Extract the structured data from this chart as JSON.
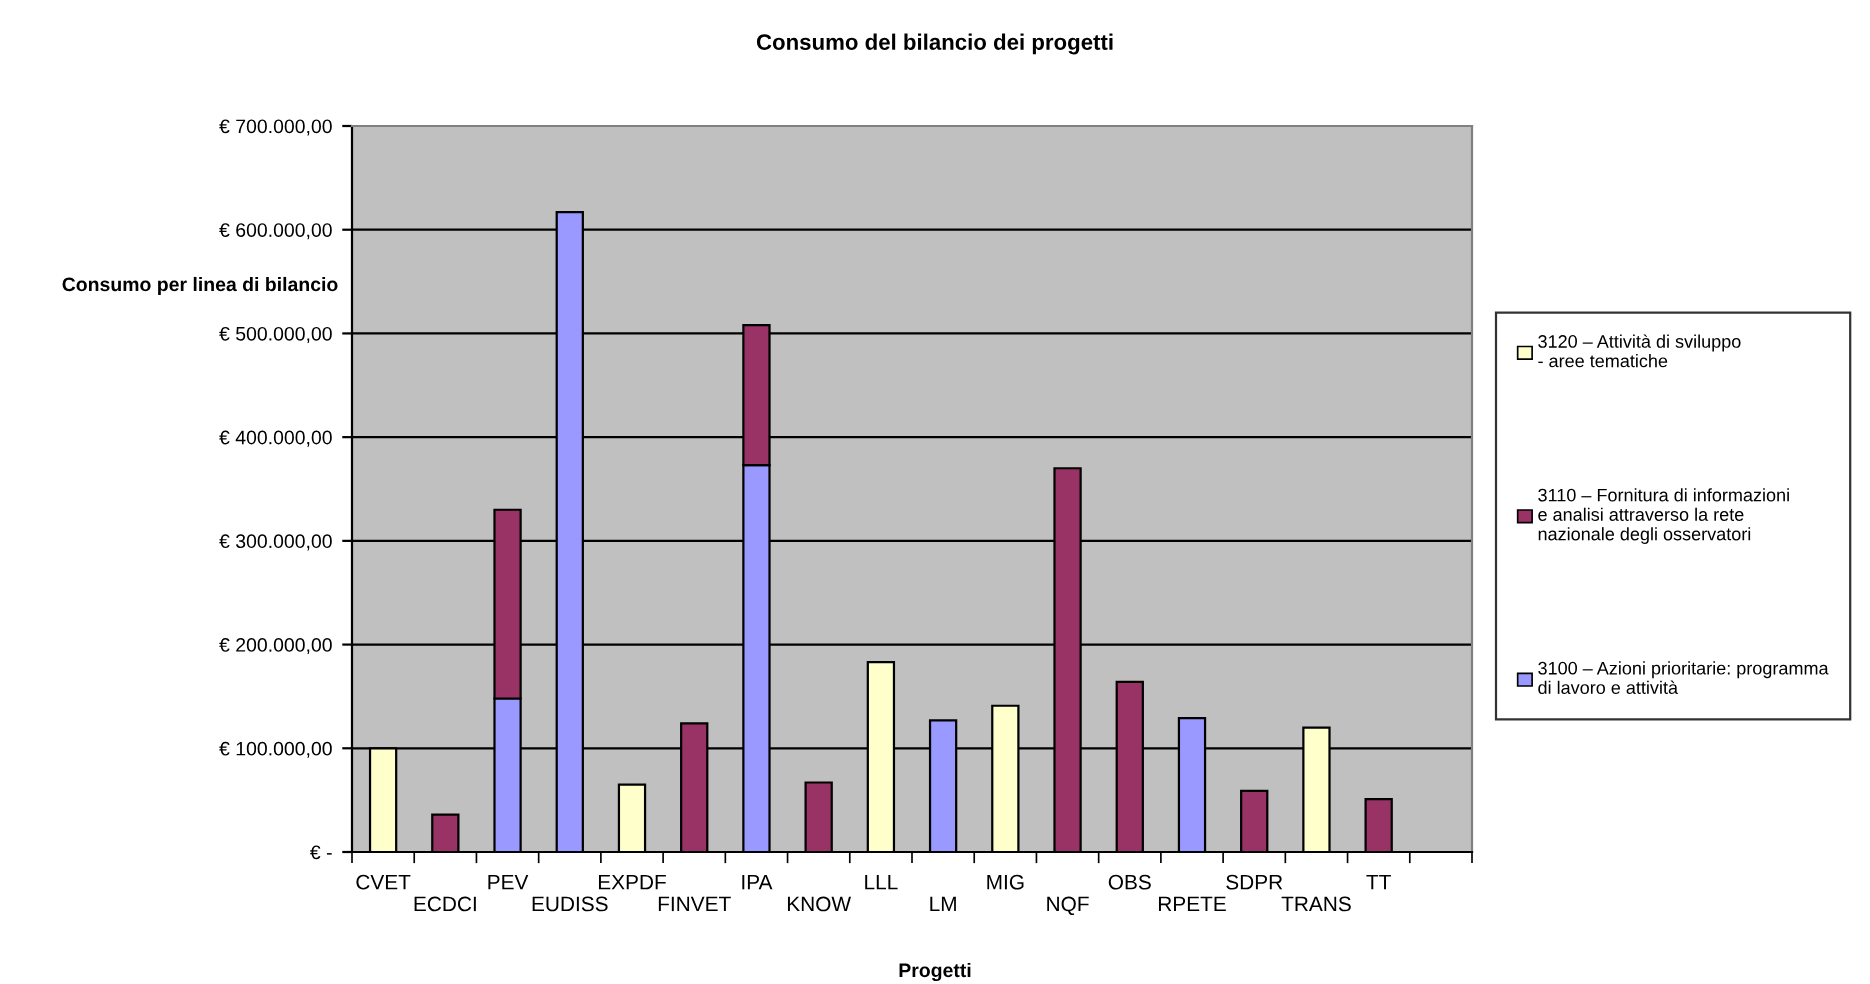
{
  "chart_data": {
    "type": "bar",
    "stacked": true,
    "title": "Consumo del bilancio dei progetti",
    "xlabel": "Progetti",
    "ylabel": "Consumo per linea di bilancio",
    "categories": [
      "CVET",
      "ECDCI",
      "PEV",
      "EUDISS",
      "EXPDF",
      "FINVET",
      "IPA",
      "KNOW",
      "LLL",
      "LM",
      "MIG",
      "NQF",
      "OBS",
      "RPETE",
      "SDPR",
      "TRANS",
      "TT",
      null
    ],
    "series": [
      {
        "name": "3100 – Azioni prioritarie: programma\ndi lavoro e attività",
        "color": "#9999ff",
        "values": [
          null,
          null,
          148000,
          617000,
          null,
          null,
          373000,
          null,
          null,
          127000,
          null,
          null,
          null,
          129000,
          null,
          null,
          null,
          null
        ]
      },
      {
        "name": "3110 – Fornitura di informazioni\ne analisi attraverso la rete\nnazionale degli osservatori",
        "color": "#993366",
        "values": [
          null,
          36000,
          182000,
          null,
          null,
          124000,
          135000,
          67000,
          null,
          null,
          null,
          370000,
          164000,
          null,
          59000,
          null,
          51000,
          null
        ]
      },
      {
        "name": "3120 – Attività di sviluppo\n- aree tematiche",
        "color": "#ffffcc",
        "values": [
          100000,
          null,
          null,
          null,
          65000,
          null,
          null,
          null,
          183000,
          null,
          141000,
          null,
          null,
          null,
          null,
          120000,
          null,
          null
        ]
      }
    ],
    "ylim": [
      0,
      700000
    ],
    "yticks": [
      {
        "value": 0,
        "label": "€ -"
      },
      {
        "value": 100000,
        "label": "€ 100.000,00"
      },
      {
        "value": 200000,
        "label": "€ 200.000,00"
      },
      {
        "value": 300000,
        "label": "€ 300.000,00"
      },
      {
        "value": 400000,
        "label": "€ 400.000,00"
      },
      {
        "value": 500000,
        "label": "€ 500.000,00"
      },
      {
        "value": 600000,
        "label": "€ 600.000,00"
      },
      {
        "value": 700000,
        "label": "€ 700.000,00"
      }
    ],
    "grid": "y",
    "legend": "right"
  }
}
